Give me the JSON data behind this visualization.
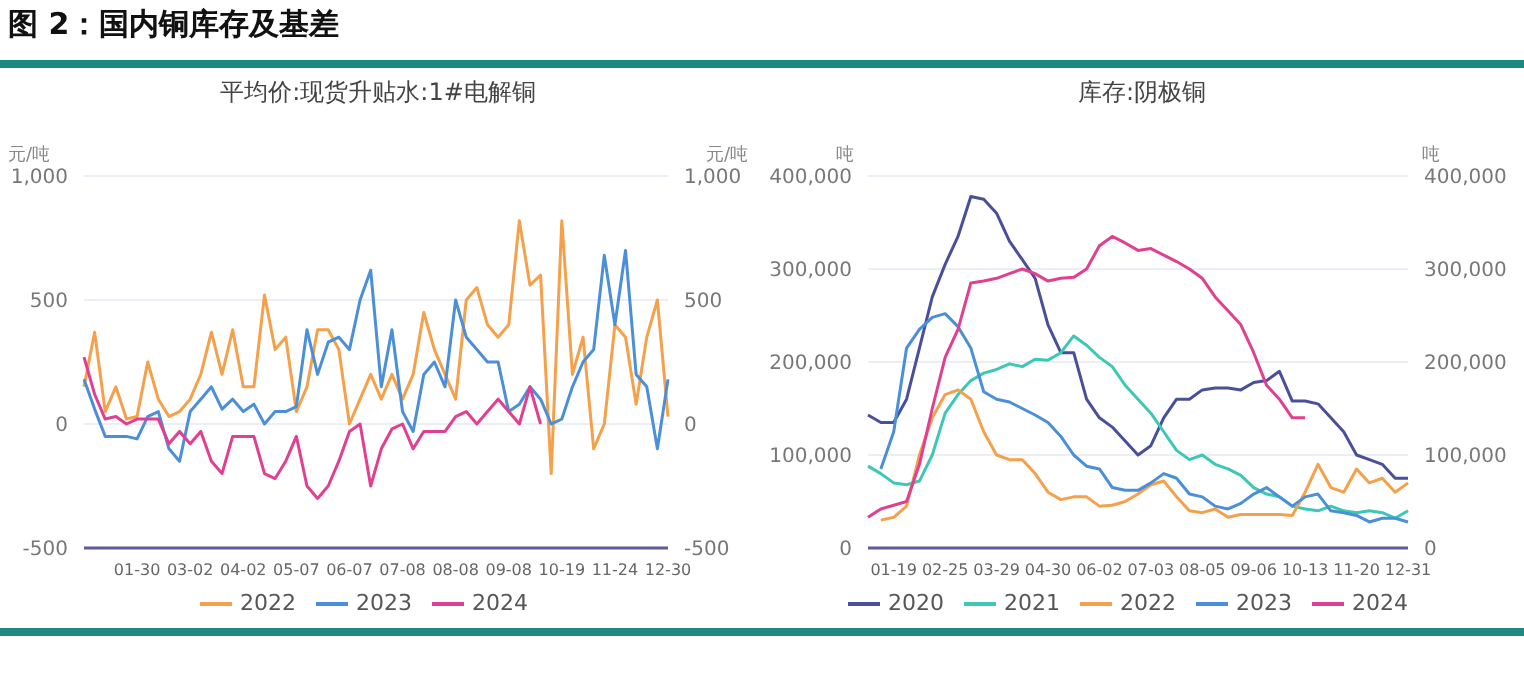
{
  "chart_data": [
    {
      "type": "line",
      "title": "图 2：国内铜库存及基差",
      "subtitle": "平均价:现货升贴水:1#电解铜",
      "ylabel": "元/吨",
      "y2label": "元/吨",
      "categories": [
        null,
        null,
        null,
        null,
        null,
        "01-30",
        null,
        null,
        null,
        null,
        "03-02",
        null,
        null,
        null,
        null,
        "04-02",
        null,
        null,
        null,
        null,
        "05-07",
        null,
        null,
        null,
        null,
        "06-07",
        null,
        null,
        null,
        null,
        "07-08",
        null,
        null,
        null,
        null,
        "08-08",
        null,
        null,
        null,
        null,
        "09-08",
        null,
        null,
        null,
        null,
        "10-19",
        null,
        null,
        null,
        null,
        "11-24",
        null,
        null,
        null,
        null,
        "12-30"
      ],
      "series": [
        {
          "name": "2022",
          "color": "#f5a04a",
          "values": [
            150,
            370,
            50,
            150,
            20,
            30,
            250,
            100,
            30,
            50,
            100,
            200,
            370,
            200,
            380,
            150,
            150,
            520,
            300,
            350,
            50,
            150,
            380,
            380,
            300,
            0,
            100,
            200,
            100,
            200,
            100,
            200,
            450,
            300,
            200,
            100,
            500,
            550,
            400,
            350,
            400,
            820,
            560,
            600,
            -200,
            820,
            200,
            350,
            -100,
            0,
            400,
            350,
            80,
            350,
            500,
            30
          ]
        },
        {
          "name": "2023",
          "color": "#4a8fd8",
          "values": [
            180,
            60,
            -50,
            -50,
            -50,
            -60,
            30,
            50,
            -100,
            -150,
            50,
            100,
            150,
            60,
            100,
            50,
            80,
            0,
            50,
            50,
            70,
            380,
            200,
            330,
            350,
            300,
            500,
            620,
            150,
            380,
            50,
            -30,
            200,
            250,
            150,
            500,
            350,
            300,
            250,
            250,
            50,
            80,
            150,
            100,
            0,
            20,
            150,
            250,
            300,
            680,
            400,
            700,
            200,
            150,
            -100,
            180
          ]
        },
        {
          "name": "2024",
          "color": "#e0408f",
          "values": [
            270,
            120,
            20,
            30,
            0,
            20,
            20,
            20,
            -80,
            -30,
            -80,
            -30,
            -150,
            -200,
            -50,
            -50,
            -50,
            -200,
            -220,
            -150,
            -50,
            -250,
            -300,
            -250,
            -150,
            -30,
            0,
            -250,
            -100,
            -20,
            0,
            -100,
            -30,
            -30,
            -30,
            30,
            50,
            0,
            50,
            100,
            50,
            0,
            150,
            0,
            null,
            null,
            null,
            null,
            null,
            null,
            null,
            null,
            null,
            null,
            null,
            null
          ]
        }
      ],
      "ylim": [
        -500,
        1000
      ],
      "yticks": [
        -500,
        0,
        500,
        {
          "value": 1000,
          "label": "1,000"
        }
      ],
      "y2lim": [
        -500,
        1000
      ],
      "y2ticks": [
        -500,
        0,
        500,
        {
          "value": 1000,
          "label": "1,000"
        }
      ],
      "grid": "y",
      "legend": "bottom",
      "marker": "none"
    },
    {
      "type": "line",
      "title": "库存:阴极铜",
      "ylabel": "吨",
      "y2label": "吨",
      "categories": [
        null,
        null,
        "01-19",
        null,
        null,
        null,
        "02-25",
        null,
        null,
        null,
        "03-29",
        null,
        null,
        null,
        "04-30",
        null,
        null,
        null,
        "06-02",
        null,
        null,
        null,
        "07-03",
        null,
        null,
        null,
        "08-05",
        null,
        null,
        null,
        "09-06",
        null,
        null,
        null,
        "10-13",
        null,
        null,
        null,
        "11-20",
        null,
        null,
        null,
        "12-31"
      ],
      "series": [
        {
          "name": "2020",
          "color": "#4a4f9a",
          "values": [
            143000,
            135000,
            135000,
            160000,
            215000,
            270000,
            305000,
            335000,
            378000,
            375000,
            360000,
            330000,
            310000,
            290000,
            240000,
            210000,
            210000,
            160000,
            140000,
            130000,
            115000,
            100000,
            110000,
            140000,
            160000,
            160000,
            170000,
            172000,
            172000,
            170000,
            178000,
            180000,
            190000,
            158000,
            158000,
            155000,
            140000,
            125000,
            100000,
            95000,
            90000,
            75000,
            75000
          ]
        },
        {
          "name": "2021",
          "color": "#3cc8b4",
          "values": [
            88000,
            80000,
            70000,
            68000,
            72000,
            100000,
            145000,
            165000,
            180000,
            188000,
            192000,
            198000,
            195000,
            203000,
            202000,
            210000,
            228000,
            218000,
            205000,
            195000,
            175000,
            160000,
            145000,
            125000,
            105000,
            95000,
            100000,
            90000,
            85000,
            78000,
            65000,
            58000,
            55000,
            45000,
            42000,
            40000,
            45000,
            40000,
            38000,
            40000,
            38000,
            32000,
            40000
          ]
        },
        {
          "name": "2022",
          "color": "#f5a04a",
          "values": [
            null,
            30000,
            33000,
            45000,
            100000,
            140000,
            165000,
            170000,
            160000,
            125000,
            100000,
            95000,
            95000,
            80000,
            60000,
            52000,
            55000,
            55000,
            45000,
            46000,
            50000,
            58000,
            68000,
            72000,
            55000,
            40000,
            38000,
            42000,
            33000,
            36000,
            36000,
            36000,
            36000,
            35000,
            60000,
            90000,
            65000,
            60000,
            85000,
            70000,
            75000,
            60000,
            70000
          ]
        },
        {
          "name": "2023",
          "color": "#4a8fd8",
          "values": [
            null,
            85000,
            125000,
            215000,
            235000,
            248000,
            252000,
            238000,
            215000,
            168000,
            160000,
            157000,
            150000,
            143000,
            135000,
            120000,
            100000,
            88000,
            85000,
            65000,
            62000,
            62000,
            70000,
            80000,
            75000,
            58000,
            55000,
            45000,
            42000,
            48000,
            58000,
            65000,
            55000,
            45000,
            55000,
            58000,
            40000,
            38000,
            35000,
            28000,
            32000,
            32000,
            28000
          ]
        },
        {
          "name": "2024",
          "color": "#e0408f",
          "values": [
            33000,
            42000,
            46000,
            50000,
            90000,
            150000,
            205000,
            235000,
            285000,
            287000,
            290000,
            295000,
            300000,
            295000,
            287000,
            290000,
            291000,
            300000,
            325000,
            335000,
            328000,
            320000,
            322000,
            315000,
            308000,
            300000,
            290000,
            270000,
            255000,
            240000,
            210000,
            175000,
            160000,
            140000,
            140000,
            null,
            null,
            null,
            null,
            null,
            null,
            null,
            null
          ]
        }
      ],
      "ylim": [
        0,
        400000
      ],
      "yticks": [
        0,
        {
          "value": 100000,
          "label": "100,000"
        },
        {
          "value": 200000,
          "label": "200,000"
        },
        {
          "value": 300000,
          "label": "300,000"
        },
        {
          "value": 400000,
          "label": "400,000"
        }
      ],
      "y2lim": [
        0,
        400000
      ],
      "y2ticks": [
        0,
        {
          "value": 100000,
          "label": "100,000"
        },
        {
          "value": 200000,
          "label": "200,000"
        },
        {
          "value": 300000,
          "label": "300,000"
        },
        {
          "value": 400000,
          "label": "400,000"
        }
      ],
      "grid": "y",
      "legend": "bottom",
      "marker": "none"
    }
  ]
}
